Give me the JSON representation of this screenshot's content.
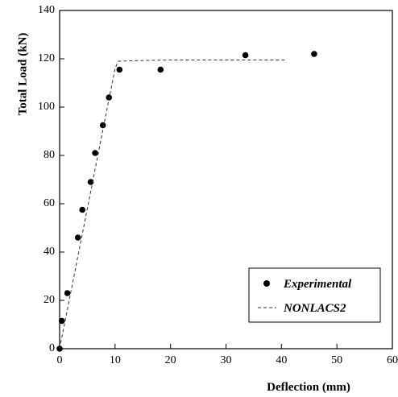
{
  "chart_data": {
    "type": "scatter",
    "title": "",
    "xlabel": "Deflection (mm)",
    "ylabel": "Total Load (kN)",
    "xlim": [
      0,
      60
    ],
    "ylim": [
      0,
      140
    ],
    "x_ticks": [
      0,
      10,
      20,
      30,
      40,
      50,
      60
    ],
    "y_ticks": [
      0,
      20,
      40,
      60,
      80,
      100,
      120,
      140
    ],
    "grid": false,
    "legend_position": "bottom-right",
    "series": [
      {
        "name": "Experimental",
        "style": "markers",
        "color": "#000000",
        "x": [
          0.0,
          0.4,
          1.4,
          3.3,
          4.1,
          5.6,
          6.4,
          7.8,
          8.9,
          10.8,
          18.2,
          33.5,
          45.9
        ],
        "y": [
          0.0,
          11.5,
          23.0,
          46.0,
          57.5,
          69.0,
          81.0,
          92.5,
          104.0,
          115.5,
          115.5,
          121.5,
          122.0
        ]
      },
      {
        "name": "NONLACS2",
        "style": "dashed-line",
        "color": "#333333",
        "x": [
          0.0,
          10.0,
          10.6,
          15.0,
          20.0,
          30.0,
          41.0
        ],
        "y": [
          0.0,
          116.0,
          119.0,
          119.3,
          119.5,
          119.5,
          119.5
        ]
      }
    ]
  }
}
